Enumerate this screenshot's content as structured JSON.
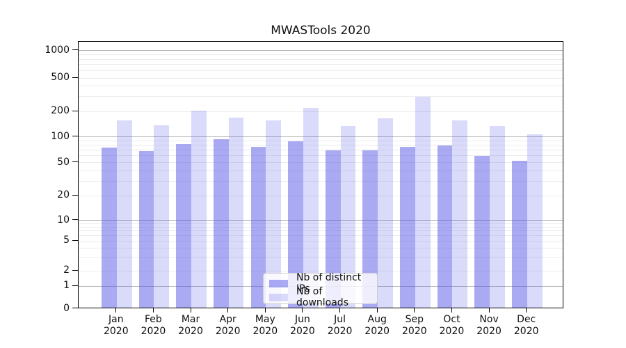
{
  "chart_data": {
    "type": "bar",
    "title": "MWASTools 2020",
    "categories": [
      "Jan",
      "Feb",
      "Mar",
      "Apr",
      "May",
      "Jun",
      "Jul",
      "Aug",
      "Sep",
      "Oct",
      "Nov",
      "Dec"
    ],
    "year_label": "2020",
    "series": [
      {
        "name": "Nb of distinct IPs",
        "fill": "rgba(85,85,232,0.50)",
        "color_hex": "#a6a6f2",
        "values": [
          73,
          67,
          80,
          92,
          75,
          87,
          68,
          68,
          74,
          77,
          58,
          51
        ]
      },
      {
        "name": "Nb of downloads",
        "fill": "rgba(85,85,232,0.22)",
        "color_hex": "#d8d8f8",
        "values": [
          154,
          133,
          200,
          166,
          154,
          215,
          131,
          161,
          291,
          153,
          131,
          105
        ]
      }
    ],
    "y_ticks": [
      0,
      1,
      2,
      5,
      10,
      20,
      50,
      100,
      200,
      500,
      1000
    ],
    "y_scale": "log-with-zero-baseline",
    "ylim": [
      0,
      1000
    ],
    "grid": "horizontal, log minor + major lines",
    "legend_position": "inside bottom-center",
    "axis_color": "#000000",
    "grid_minor_color": "#ececec",
    "grid_major_color": "#b5b5b5"
  }
}
